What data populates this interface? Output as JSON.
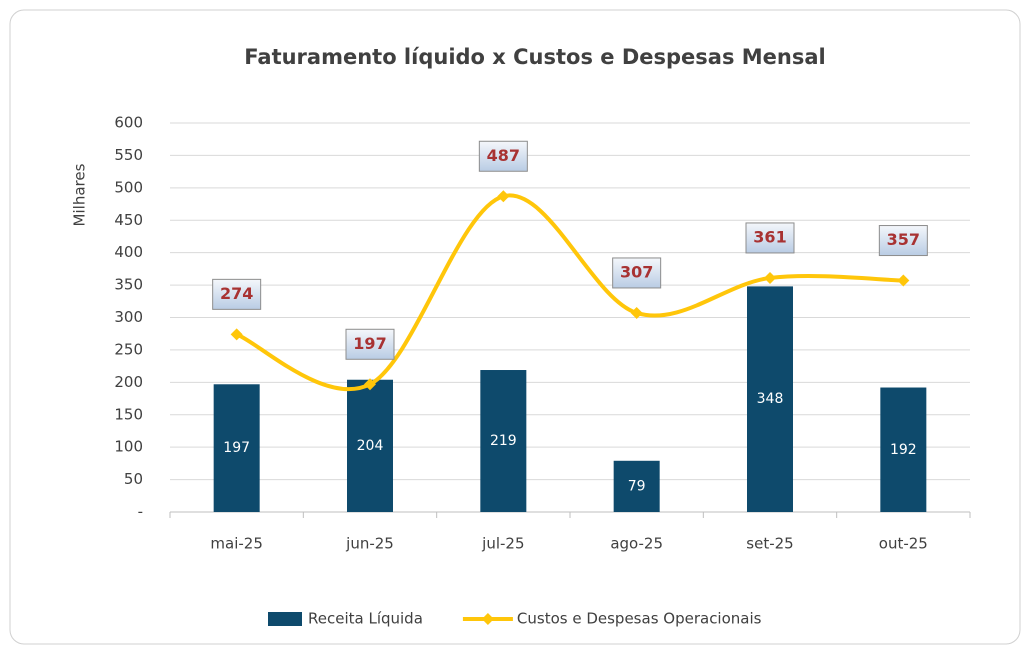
{
  "chart_data": {
    "type": "combo",
    "title": "Faturamento líquido x Custos e Despesas Mensal",
    "y_label": "Milhares",
    "categories": [
      "mai-25",
      "jun-25",
      "jul-25",
      "ago-25",
      "set-25",
      "out-25"
    ],
    "series": [
      {
        "name": "Receita Líquida",
        "type": "bar",
        "color": "#0e4a6c",
        "values": [
          197,
          204,
          219,
          79,
          348,
          192
        ]
      },
      {
        "name": "Custos e Despesas Operacionais",
        "type": "line",
        "color": "#ffc60a",
        "values": [
          274,
          197,
          487,
          307,
          361,
          357
        ]
      }
    ],
    "ylim": [
      0,
      600
    ],
    "yticks": [
      {
        "value": 0,
        "label": "-"
      },
      50,
      100,
      150,
      200,
      250,
      300,
      350,
      400,
      450,
      500,
      550,
      600
    ],
    "grid": true,
    "legend": "bottom"
  }
}
